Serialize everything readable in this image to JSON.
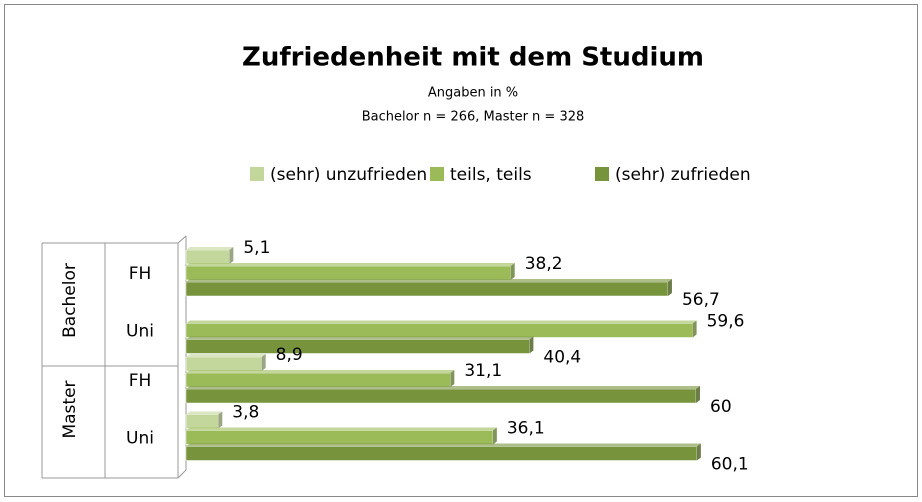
{
  "chart_data": {
    "type": "bar",
    "orientation": "horizontal",
    "title": "Zufriedenheit mit dem Studium",
    "subtitle": [
      "Angaben in %",
      "Bachelor n = 266, Master n = 328"
    ],
    "groups": [
      "Bachelor",
      "Master"
    ],
    "categories": [
      "FH",
      "Uni",
      "FH",
      "Uni"
    ],
    "legend": "top",
    "series": [
      {
        "name": "(sehr) unzufrieden",
        "color": "#c3d69b",
        "values": [
          5.1,
          null,
          8.9,
          3.8
        ],
        "value_labels": [
          "5,1",
          null,
          "8,9",
          "3,8"
        ]
      },
      {
        "name": "teils, teils",
        "color": "#9bbb59",
        "values": [
          38.2,
          59.6,
          31.1,
          36.1
        ],
        "value_labels": [
          "38,2",
          "59,6",
          "31,1",
          "36,1"
        ]
      },
      {
        "name": "(sehr) zufrieden",
        "color": "#77933c",
        "values": [
          56.7,
          40.4,
          60,
          60.1
        ],
        "value_labels": [
          "56,7",
          "40,4",
          "60",
          "60,1"
        ]
      }
    ]
  }
}
